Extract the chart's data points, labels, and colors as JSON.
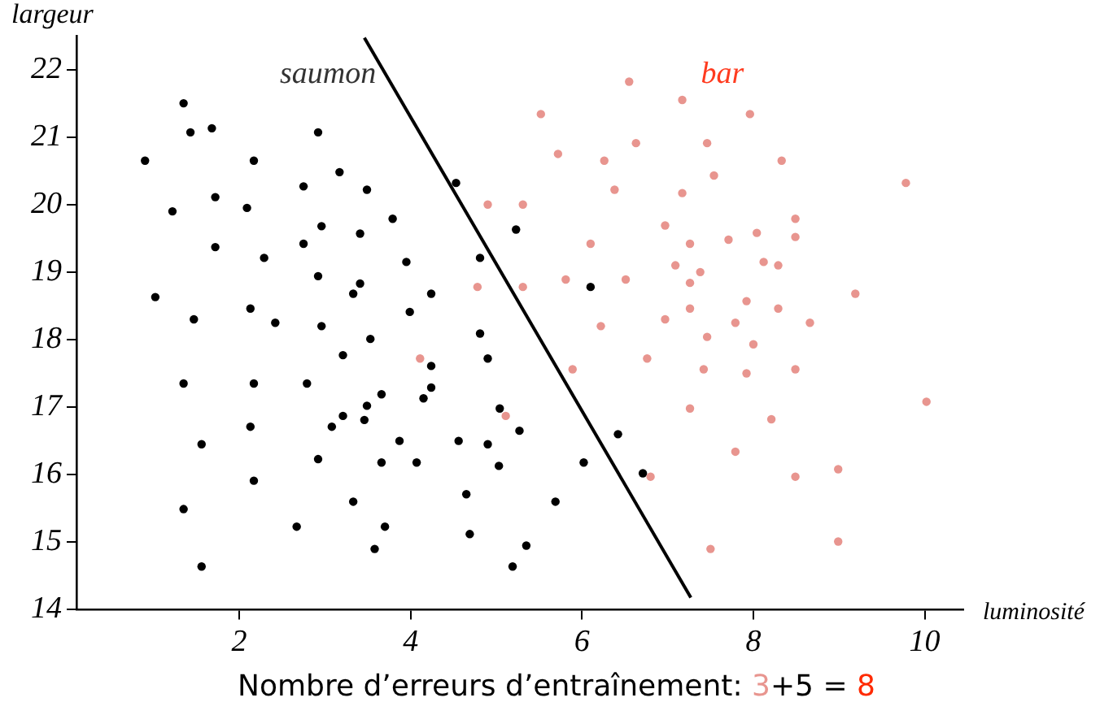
{
  "chart_data": {
    "type": "scatter",
    "xlabel": "luminosité",
    "ylabel": "largeur",
    "xlim": [
      0.1,
      10.45
    ],
    "ylim": [
      14,
      22.5
    ],
    "xticks": [
      2,
      4,
      6,
      8,
      10
    ],
    "yticks": [
      14,
      15,
      16,
      17,
      18,
      19,
      20,
      21,
      22
    ],
    "grid": false,
    "legend": false,
    "marker": "circle",
    "series": [
      {
        "name": "saumon",
        "color": "#000000",
        "x": [
          0.9,
          1.35,
          1.43,
          1.68,
          2.92,
          2.17,
          3.17,
          2.75,
          3.49,
          1.22,
          1.72,
          2.09,
          2.96,
          3.41,
          3.79,
          4.53,
          1.72,
          2.29,
          2.75,
          3.95,
          4.81,
          2.92,
          3.41,
          3.33,
          4.24,
          1.02,
          2.13,
          3.99,
          1.47,
          2.42,
          2.96,
          4.81,
          3.53,
          5.23,
          6.1,
          4.9,
          5.03,
          5.27,
          6.42,
          6.02,
          6.71,
          5.69,
          5.35,
          5.19,
          3.21,
          4.24,
          1.35,
          2.17,
          2.79,
          4.24,
          3.66,
          4.15,
          3.49,
          3.21,
          3.46,
          3.08,
          2.13,
          5.04,
          1.56,
          3.87,
          4.56,
          4.9,
          2.92,
          3.66,
          4.07,
          4.65,
          3.33,
          1.35,
          2.17,
          2.67,
          3.7,
          4.69,
          3.58,
          1.56
        ],
        "values": [
          20.65,
          21.5,
          21.07,
          21.13,
          21.07,
          20.65,
          20.48,
          20.27,
          20.22,
          19.9,
          20.11,
          19.95,
          19.68,
          19.57,
          19.79,
          20.32,
          19.37,
          19.21,
          19.42,
          19.15,
          19.21,
          18.94,
          18.83,
          18.68,
          18.68,
          18.63,
          18.46,
          18.41,
          18.3,
          18.25,
          18.2,
          18.09,
          18.01,
          19.63,
          18.78,
          17.72,
          16.13,
          16.65,
          16.6,
          16.18,
          16.02,
          15.6,
          14.95,
          14.64,
          17.77,
          17.61,
          17.35,
          17.35,
          17.35,
          17.29,
          17.19,
          17.13,
          17.02,
          16.87,
          16.81,
          16.71,
          16.71,
          16.98,
          16.45,
          16.5,
          16.5,
          16.45,
          16.23,
          16.18,
          16.18,
          15.71,
          15.6,
          15.49,
          15.91,
          15.23,
          15.23,
          15.12,
          14.9,
          14.64
        ]
      },
      {
        "name": "bar",
        "color": "#e8958f",
        "x": [
          4.9,
          4.78,
          4.11,
          5.11,
          6.55,
          7.17,
          5.52,
          7.96,
          6.63,
          7.46,
          5.72,
          6.26,
          8.33,
          7.54,
          6.38,
          7.17,
          9.78,
          5.31,
          6.97,
          8.49,
          6.1,
          7.26,
          7.71,
          8.04,
          8.49,
          7.09,
          7.38,
          8.12,
          8.29,
          5.31,
          5.81,
          6.51,
          7.26,
          7.92,
          9.19,
          6.97,
          7.26,
          8.29,
          7.79,
          8.66,
          6.22,
          7.46,
          8.0,
          5.89,
          6.76,
          7.42,
          7.92,
          8.49,
          10.02,
          7.26,
          8.21,
          7.79,
          6.8,
          8.49,
          8.99,
          7.5,
          8.99
        ],
        "values": [
          20.0,
          18.78,
          17.72,
          16.87,
          21.82,
          21.55,
          21.34,
          21.34,
          20.91,
          20.91,
          20.75,
          20.65,
          20.65,
          20.43,
          20.22,
          20.17,
          20.32,
          20.0,
          19.69,
          19.79,
          19.42,
          19.42,
          19.48,
          19.58,
          19.52,
          19.1,
          19.0,
          19.15,
          19.1,
          18.78,
          18.89,
          18.89,
          18.84,
          18.57,
          18.68,
          18.3,
          18.46,
          18.46,
          18.25,
          18.25,
          18.2,
          18.04,
          17.93,
          17.56,
          17.72,
          17.56,
          17.5,
          17.56,
          17.08,
          16.98,
          16.82,
          16.34,
          15.97,
          15.97,
          16.08,
          14.9,
          15.01
        ]
      },
      {
        "type": "line",
        "color": "#000000",
        "marker": "none",
        "x": [
          3.46,
          7.27
        ],
        "values": [
          22.47,
          14.18
        ]
      }
    ],
    "annotations": [
      "Nombre d’erreurs d’entraînement: 3+5 = 8"
    ]
  }
}
